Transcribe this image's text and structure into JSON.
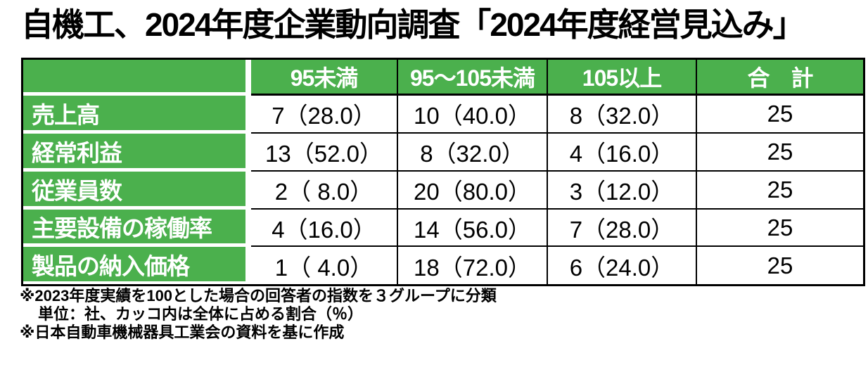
{
  "title": "自機工、2024年度企業動向調査「2024年度経営見込み」",
  "colors": {
    "header_green": "#4bb04d",
    "border_black": "#000000",
    "header_text": "#ffffff"
  },
  "chart_data": {
    "type": "table",
    "title": "自機工、2024年度企業動向調査「2024年度経営見込み」",
    "columns": [
      "95未満",
      "95〜105未満",
      "105以上",
      "合　計"
    ],
    "rows": [
      {
        "label": "売上高",
        "cells": [
          "7（28.0）",
          "10（40.0）",
          "8（32.0）",
          "25"
        ],
        "counts": [
          7,
          10,
          8
        ],
        "percents": [
          28.0,
          40.0,
          32.0
        ],
        "total": 25
      },
      {
        "label": "経常利益",
        "cells": [
          "13（52.0）",
          "8（32.0）",
          "4（16.0）",
          "25"
        ],
        "counts": [
          13,
          8,
          4
        ],
        "percents": [
          52.0,
          32.0,
          16.0
        ],
        "total": 25
      },
      {
        "label": "従業員数",
        "cells": [
          "2（ 8.0）",
          "20（80.0）",
          "3（12.0）",
          "25"
        ],
        "counts": [
          2,
          20,
          3
        ],
        "percents": [
          8.0,
          80.0,
          12.0
        ],
        "total": 25
      },
      {
        "label": "主要設備の稼働率",
        "cells": [
          "4（16.0）",
          "14（56.0）",
          "7（28.0）",
          "25"
        ],
        "counts": [
          4,
          14,
          7
        ],
        "percents": [
          16.0,
          56.0,
          28.0
        ],
        "total": 25
      },
      {
        "label": "製品の納入価格",
        "cells": [
          "1（ 4.0）",
          "18（72.0）",
          "6（24.0）",
          "25"
        ],
        "counts": [
          1,
          18,
          6
        ],
        "percents": [
          4.0,
          72.0,
          24.0
        ],
        "total": 25
      }
    ],
    "notes": [
      "※2023年度実績を100とした場合の回答者の指数を３グループに分類",
      "単位：社、カッコ内は全体に占める割合（％）",
      "※日本自動車機械器具工業会の資料を基に作成"
    ],
    "legend_position": "none",
    "grid": true
  }
}
